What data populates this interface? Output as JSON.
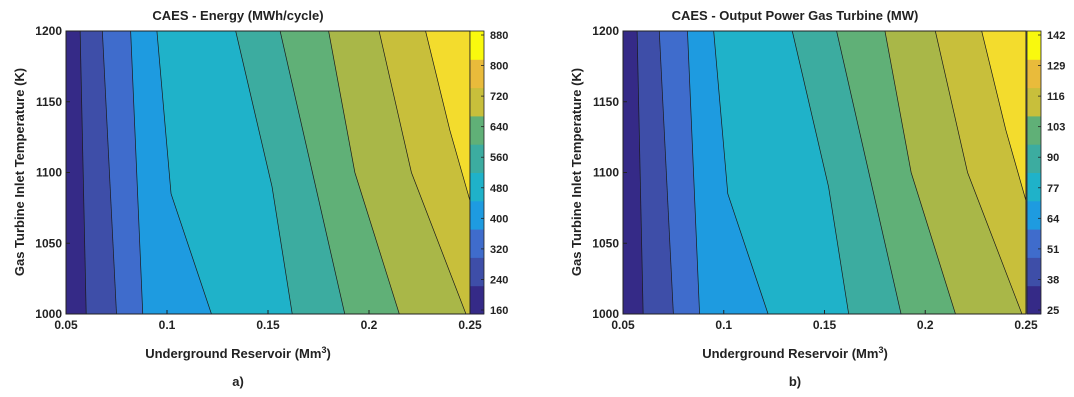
{
  "figure_colors": [
    "#352a87",
    "#3e4ea8",
    "#3f6ccc",
    "#1e9be0",
    "#1fb2c9",
    "#3caca0",
    "#60b077",
    "#a9b748",
    "#c8bf3b",
    "#e9bb3b",
    "#f3dc2d",
    "#f9f90e"
  ],
  "chart_data": [
    {
      "type": "contour",
      "title": "CAES - Energy (MWh/cycle)",
      "xlabel": "Underground Reservoir (Mm",
      "xlabel_sup": "3",
      "xlabel_tail": ")",
      "ylabel": "Gas Turbine Inlet Temperature (K)",
      "panel_label": "a)",
      "xlim": [
        0.05,
        0.25
      ],
      "ylim": [
        1000,
        1200
      ],
      "xticks": [
        "0.05",
        "0.1",
        "0.15",
        "0.2",
        "0.25"
      ],
      "yticks": [
        "1000",
        "1050",
        "1100",
        "1150",
        "1200"
      ],
      "colorbar_ticks": [
        "160",
        "240",
        "320",
        "400",
        "480",
        "560",
        "640",
        "720",
        "800",
        "880"
      ],
      "levels": [
        160,
        240,
        320,
        400,
        480,
        560,
        640,
        720,
        800,
        880
      ],
      "contour_lines": [
        {
          "level": 240,
          "points": [
            [
              0.06,
              1000
            ],
            [
              0.057,
              1200
            ]
          ]
        },
        {
          "level": 320,
          "points": [
            [
              0.075,
              1000
            ],
            [
              0.068,
              1200
            ]
          ]
        },
        {
          "level": 400,
          "points": [
            [
              0.088,
              1000
            ],
            [
              0.085,
              1100
            ],
            [
              0.082,
              1200
            ]
          ]
        },
        {
          "level": 480,
          "points": [
            [
              0.122,
              1000
            ],
            [
              0.102,
              1085
            ],
            [
              0.095,
              1200
            ]
          ]
        },
        {
          "level": 560,
          "points": [
            [
              0.162,
              1000
            ],
            [
              0.152,
              1090
            ],
            [
              0.134,
              1200
            ]
          ]
        },
        {
          "level": 640,
          "points": [
            [
              0.188,
              1000
            ],
            [
              0.172,
              1100
            ],
            [
              0.156,
              1200
            ]
          ]
        },
        {
          "level": 720,
          "points": [
            [
              0.215,
              1000
            ],
            [
              0.193,
              1100
            ],
            [
              0.18,
              1200
            ]
          ]
        },
        {
          "level": 800,
          "points": [
            [
              0.248,
              1000
            ],
            [
              0.221,
              1100
            ],
            [
              0.205,
              1200
            ]
          ]
        },
        {
          "level": 880,
          "points": [
            [
              0.25,
              1080
            ],
            [
              0.24,
              1130
            ],
            [
              0.228,
              1200
            ]
          ]
        }
      ]
    },
    {
      "type": "contour",
      "title": "CAES - Output Power Gas Turbine (MW)",
      "xlabel": "Underground Reservoir (Mm",
      "xlabel_sup": "3",
      "xlabel_tail": ")",
      "ylabel": "Gas Turbine Inlet Temperature (K)",
      "panel_label": "b)",
      "xlim": [
        0.05,
        0.25
      ],
      "ylim": [
        1000,
        1200
      ],
      "xticks": [
        "0.05",
        "0.1",
        "0.15",
        "0.2",
        "0.25"
      ],
      "yticks": [
        "1000",
        "1050",
        "1100",
        "1150",
        "1200"
      ],
      "colorbar_ticks": [
        "142",
        "129",
        "116",
        "103",
        "90",
        "77",
        "64",
        "51",
        "38",
        "25"
      ],
      "levels": [
        25,
        38,
        51,
        64,
        77,
        90,
        103,
        116,
        129,
        142
      ],
      "contour_lines": [
        {
          "level": 38,
          "points": [
            [
              0.06,
              1000
            ],
            [
              0.057,
              1200
            ]
          ]
        },
        {
          "level": 51,
          "points": [
            [
              0.075,
              1000
            ],
            [
              0.068,
              1200
            ]
          ]
        },
        {
          "level": 64,
          "points": [
            [
              0.088,
              1000
            ],
            [
              0.085,
              1100
            ],
            [
              0.082,
              1200
            ]
          ]
        },
        {
          "level": 77,
          "points": [
            [
              0.122,
              1000
            ],
            [
              0.102,
              1085
            ],
            [
              0.095,
              1200
            ]
          ]
        },
        {
          "level": 90,
          "points": [
            [
              0.162,
              1000
            ],
            [
              0.152,
              1090
            ],
            [
              0.134,
              1200
            ]
          ]
        },
        {
          "level": 103,
          "points": [
            [
              0.188,
              1000
            ],
            [
              0.172,
              1100
            ],
            [
              0.156,
              1200
            ]
          ]
        },
        {
          "level": 116,
          "points": [
            [
              0.215,
              1000
            ],
            [
              0.193,
              1100
            ],
            [
              0.18,
              1200
            ]
          ]
        },
        {
          "level": 129,
          "points": [
            [
              0.248,
              1000
            ],
            [
              0.221,
              1100
            ],
            [
              0.205,
              1200
            ]
          ]
        },
        {
          "level": 142,
          "points": [
            [
              0.25,
              1080
            ],
            [
              0.24,
              1130
            ],
            [
              0.228,
              1200
            ]
          ]
        }
      ]
    }
  ]
}
